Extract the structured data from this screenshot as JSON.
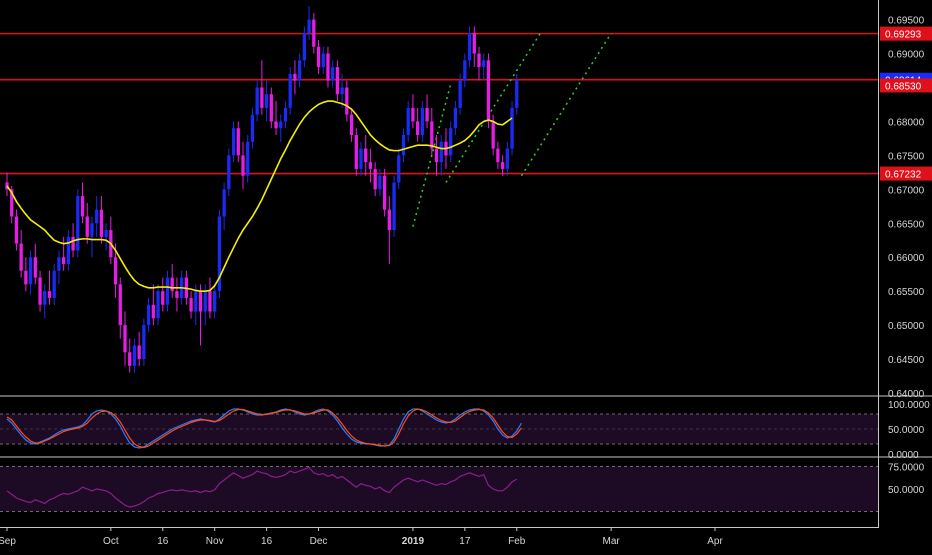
{
  "chart_data": [
    {
      "type": "candlestick",
      "pane": "price",
      "ylim": [
        0.64,
        0.697
      ],
      "y_ticks": [
        "0.69500",
        "0.69000",
        "0.68500",
        "0.68000",
        "0.67500",
        "0.67000",
        "0.66500",
        "0.66000",
        "0.65500",
        "0.65000",
        "0.64500",
        "0.64000"
      ],
      "x_ticks": [
        {
          "label": "Sep",
          "bar": 0
        },
        {
          "label": "Oct",
          "bar": 22
        },
        {
          "label": "16",
          "bar": 33
        },
        {
          "label": "Nov",
          "bar": 44
        },
        {
          "label": "16",
          "bar": 55
        },
        {
          "label": "Dec",
          "bar": 66
        },
        {
          "label": "2019",
          "bar": 86
        },
        {
          "label": "17",
          "bar": 97
        },
        {
          "label": "Feb",
          "bar": 108
        },
        {
          "label": "Mar",
          "bar": 128
        },
        {
          "label": "Apr",
          "bar": 150
        }
      ],
      "ohlc": [
        [
          0.671,
          0.6725,
          0.669,
          0.67
        ],
        [
          0.67,
          0.6705,
          0.665,
          0.666
        ],
        [
          0.666,
          0.667,
          0.661,
          0.662
        ],
        [
          0.662,
          0.664,
          0.657,
          0.658
        ],
        [
          0.658,
          0.66,
          0.655,
          0.656
        ],
        [
          0.656,
          0.661,
          0.6545,
          0.66
        ],
        [
          0.66,
          0.662,
          0.656,
          0.657
        ],
        [
          0.657,
          0.658,
          0.652,
          0.653
        ],
        [
          0.653,
          0.656,
          0.651,
          0.655
        ],
        [
          0.655,
          0.658,
          0.653,
          0.654
        ],
        [
          0.654,
          0.659,
          0.653,
          0.658
        ],
        [
          0.658,
          0.661,
          0.656,
          0.66
        ],
        [
          0.66,
          0.663,
          0.658,
          0.659
        ],
        [
          0.659,
          0.664,
          0.658,
          0.663
        ],
        [
          0.663,
          0.665,
          0.66,
          0.661
        ],
        [
          0.661,
          0.67,
          0.66,
          0.669
        ],
        [
          0.669,
          0.671,
          0.665,
          0.666
        ],
        [
          0.666,
          0.668,
          0.662,
          0.663
        ],
        [
          0.663,
          0.666,
          0.66,
          0.665
        ],
        [
          0.665,
          0.669,
          0.663,
          0.667
        ],
        [
          0.667,
          0.669,
          0.662,
          0.663
        ],
        [
          0.663,
          0.665,
          0.661,
          0.664
        ],
        [
          0.664,
          0.666,
          0.659,
          0.66
        ],
        [
          0.66,
          0.662,
          0.654,
          0.656
        ],
        [
          0.656,
          0.657,
          0.648,
          0.65
        ],
        [
          0.65,
          0.652,
          0.644,
          0.646
        ],
        [
          0.646,
          0.648,
          0.643,
          0.644
        ],
        [
          0.644,
          0.648,
          0.643,
          0.647
        ],
        [
          0.647,
          0.649,
          0.644,
          0.645
        ],
        [
          0.645,
          0.651,
          0.644,
          0.65
        ],
        [
          0.65,
          0.654,
          0.649,
          0.653
        ],
        [
          0.653,
          0.656,
          0.65,
          0.651
        ],
        [
          0.651,
          0.656,
          0.65,
          0.655
        ],
        [
          0.655,
          0.657,
          0.652,
          0.653
        ],
        [
          0.653,
          0.658,
          0.652,
          0.657
        ],
        [
          0.657,
          0.659,
          0.654,
          0.655
        ],
        [
          0.655,
          0.657,
          0.652,
          0.654
        ],
        [
          0.654,
          0.658,
          0.653,
          0.657
        ],
        [
          0.657,
          0.658,
          0.653,
          0.654
        ],
        [
          0.654,
          0.655,
          0.651,
          0.652
        ],
        [
          0.652,
          0.656,
          0.65,
          0.655
        ],
        [
          0.655,
          0.656,
          0.647,
          0.652
        ],
        [
          0.652,
          0.656,
          0.65,
          0.655
        ],
        [
          0.655,
          0.657,
          0.651,
          0.652
        ],
        [
          0.652,
          0.656,
          0.651,
          0.655
        ],
        [
          0.655,
          0.667,
          0.654,
          0.666
        ],
        [
          0.666,
          0.671,
          0.664,
          0.67
        ],
        [
          0.67,
          0.676,
          0.669,
          0.675
        ],
        [
          0.675,
          0.68,
          0.674,
          0.679
        ],
        [
          0.679,
          0.68,
          0.674,
          0.675
        ],
        [
          0.675,
          0.677,
          0.67,
          0.672
        ],
        [
          0.672,
          0.678,
          0.671,
          0.677
        ],
        [
          0.677,
          0.682,
          0.676,
          0.681
        ],
        [
          0.681,
          0.686,
          0.68,
          0.685
        ],
        [
          0.685,
          0.689,
          0.681,
          0.682
        ],
        [
          0.682,
          0.686,
          0.68,
          0.684
        ],
        [
          0.684,
          0.685,
          0.679,
          0.68
        ],
        [
          0.68,
          0.683,
          0.678,
          0.679
        ],
        [
          0.679,
          0.681,
          0.677,
          0.68
        ],
        [
          0.68,
          0.683,
          0.679,
          0.682
        ],
        [
          0.682,
          0.688,
          0.681,
          0.687
        ],
        [
          0.687,
          0.689,
          0.684,
          0.686
        ],
        [
          0.686,
          0.69,
          0.685,
          0.689
        ],
        [
          0.689,
          0.694,
          0.688,
          0.693
        ],
        [
          0.693,
          0.697,
          0.692,
          0.695
        ],
        [
          0.695,
          0.696,
          0.69,
          0.691
        ],
        [
          0.691,
          0.692,
          0.687,
          0.688
        ],
        [
          0.688,
          0.691,
          0.687,
          0.69
        ],
        [
          0.69,
          0.691,
          0.685,
          0.686
        ],
        [
          0.686,
          0.689,
          0.685,
          0.688
        ],
        [
          0.688,
          0.689,
          0.683,
          0.684
        ],
        [
          0.684,
          0.687,
          0.682,
          0.685
        ],
        [
          0.685,
          0.686,
          0.68,
          0.681
        ],
        [
          0.681,
          0.682,
          0.677,
          0.678
        ],
        [
          0.678,
          0.679,
          0.672,
          0.673
        ],
        [
          0.673,
          0.677,
          0.672,
          0.676
        ],
        [
          0.676,
          0.678,
          0.672,
          0.674
        ],
        [
          0.674,
          0.676,
          0.671,
          0.673
        ],
        [
          0.673,
          0.674,
          0.669,
          0.67
        ],
        [
          0.67,
          0.673,
          0.669,
          0.672
        ],
        [
          0.672,
          0.673,
          0.666,
          0.667
        ],
        [
          0.667,
          0.669,
          0.659,
          0.664
        ],
        [
          0.664,
          0.672,
          0.663,
          0.671
        ],
        [
          0.671,
          0.676,
          0.67,
          0.675
        ],
        [
          0.675,
          0.679,
          0.674,
          0.678
        ],
        [
          0.678,
          0.683,
          0.677,
          0.682
        ],
        [
          0.682,
          0.684,
          0.679,
          0.68
        ],
        [
          0.68,
          0.682,
          0.677,
          0.678
        ],
        [
          0.678,
          0.683,
          0.677,
          0.682
        ],
        [
          0.682,
          0.684,
          0.679,
          0.68
        ],
        [
          0.68,
          0.682,
          0.675,
          0.676
        ],
        [
          0.676,
          0.678,
          0.672,
          0.674
        ],
        [
          0.674,
          0.678,
          0.672,
          0.677
        ],
        [
          0.677,
          0.679,
          0.673,
          0.675
        ],
        [
          0.675,
          0.68,
          0.674,
          0.679
        ],
        [
          0.679,
          0.683,
          0.678,
          0.682
        ],
        [
          0.682,
          0.687,
          0.681,
          0.686
        ],
        [
          0.686,
          0.69,
          0.685,
          0.689
        ],
        [
          0.689,
          0.694,
          0.688,
          0.693
        ],
        [
          0.693,
          0.694,
          0.688,
          0.69
        ],
        [
          0.69,
          0.691,
          0.686,
          0.688
        ],
        [
          0.688,
          0.69,
          0.686,
          0.689
        ],
        [
          0.689,
          0.69,
          0.679,
          0.68
        ],
        [
          0.68,
          0.681,
          0.675,
          0.676
        ],
        [
          0.676,
          0.677,
          0.673,
          0.674
        ],
        [
          0.674,
          0.675,
          0.672,
          0.673
        ],
        [
          0.673,
          0.677,
          0.672,
          0.676
        ],
        [
          0.676,
          0.683,
          0.675,
          0.682
        ],
        [
          0.682,
          0.687,
          0.681,
          0.6861
        ]
      ],
      "ma": [
        0.6705,
        0.6695,
        0.6682,
        0.6672,
        0.6663,
        0.6655,
        0.665,
        0.6645,
        0.664,
        0.6632,
        0.6625,
        0.6622,
        0.662,
        0.6621,
        0.6624,
        0.6626,
        0.6627,
        0.6627,
        0.6626,
        0.6626,
        0.6626,
        0.6625,
        0.662,
        0.661,
        0.6598,
        0.6586,
        0.6575,
        0.6566,
        0.656,
        0.6557,
        0.6555,
        0.6555,
        0.6556,
        0.6556,
        0.6556,
        0.6555,
        0.6555,
        0.6555,
        0.6554,
        0.6553,
        0.6551,
        0.655,
        0.655,
        0.6551,
        0.6558,
        0.657,
        0.6585,
        0.66,
        0.6614,
        0.6628,
        0.664,
        0.665,
        0.666,
        0.6672,
        0.6685,
        0.67,
        0.6715,
        0.673,
        0.6745,
        0.6758,
        0.6772,
        0.6784,
        0.6796,
        0.6806,
        0.6814,
        0.682,
        0.6825,
        0.6828,
        0.683,
        0.683,
        0.6828,
        0.6826,
        0.6823,
        0.6818,
        0.681,
        0.68,
        0.679,
        0.678,
        0.6773,
        0.6767,
        0.6762,
        0.6758,
        0.6757,
        0.6757,
        0.6759,
        0.6761,
        0.6763,
        0.6765,
        0.6765,
        0.6765,
        0.6764,
        0.6762,
        0.676,
        0.676,
        0.6762,
        0.6765,
        0.6768,
        0.6772,
        0.6778,
        0.6786,
        0.6795,
        0.68,
        0.6802,
        0.68,
        0.6796,
        0.6795,
        0.68,
        0.6805
      ],
      "h_lines": [
        0.69293,
        0.68614,
        0.67232
      ],
      "price_labels": [
        {
          "value": 0.69293,
          "text": "0.69293",
          "color": "#e0101b"
        },
        {
          "value": 0.68614,
          "text": "0.68614",
          "color": "#1a2bf5"
        },
        {
          "value": 0.6853,
          "text": "0.68530",
          "color": "#e0101b"
        },
        {
          "value": 0.67232,
          "text": "0.67232",
          "color": "#e0101b"
        }
      ],
      "channels": [
        {
          "x": [
            86,
            94
          ],
          "y": [
            0.6645,
            0.6855
          ]
        },
        {
          "x": [
            93,
            113
          ],
          "y": [
            0.671,
            0.693
          ]
        },
        {
          "x": [
            109,
            128
          ],
          "y": [
            0.672,
            0.693
          ]
        }
      ],
      "colors": {
        "up": "#1a2bf5",
        "down": "#e51de5",
        "ma": "#f5f000",
        "level": "#e0101b",
        "channel": "#2bd42b"
      }
    },
    {
      "type": "line",
      "pane": "stochastic",
      "ylim": [
        0,
        100
      ],
      "y_ticks": [
        "100.0000",
        "50.0000",
        "0.0000"
      ],
      "band": [
        80,
        20
      ],
      "series": [
        {
          "color": "#2f7bff",
          "values": [
            70,
            62,
            50,
            38,
            28,
            22,
            20,
            24,
            28,
            32,
            38,
            44,
            48,
            50,
            52,
            54,
            58,
            68,
            80,
            86,
            88,
            86,
            80,
            70,
            56,
            38,
            22,
            14,
            12,
            14,
            20,
            26,
            32,
            38,
            44,
            50,
            54,
            58,
            62,
            66,
            68,
            70,
            68,
            66,
            64,
            70,
            78,
            86,
            90,
            90,
            88,
            84,
            80,
            78,
            78,
            80,
            82,
            84,
            88,
            90,
            88,
            84,
            80,
            78,
            80,
            84,
            88,
            90,
            86,
            78,
            66,
            52,
            40,
            30,
            24,
            22,
            20,
            20,
            18,
            16,
            16,
            18,
            30,
            50,
            70,
            84,
            90,
            90,
            86,
            80,
            74,
            68,
            64,
            62,
            64,
            70,
            78,
            84,
            88,
            90,
            90,
            86,
            78,
            66,
            50,
            38,
            32,
            36,
            46,
            62
          ]
        },
        {
          "color": "#ff4d1a",
          "values": [
            74,
            68,
            56,
            44,
            34,
            26,
            22,
            22,
            26,
            30,
            35,
            40,
            45,
            48,
            50,
            52,
            55,
            62,
            72,
            80,
            85,
            86,
            83,
            76,
            64,
            48,
            32,
            20,
            15,
            13,
            16,
            22,
            28,
            34,
            40,
            46,
            51,
            55,
            59,
            63,
            66,
            68,
            68,
            67,
            65,
            67,
            73,
            80,
            86,
            89,
            89,
            86,
            83,
            80,
            79,
            79,
            81,
            83,
            86,
            88,
            88,
            86,
            83,
            80,
            80,
            82,
            85,
            88,
            88,
            82,
            72,
            60,
            47,
            36,
            28,
            24,
            21,
            20,
            19,
            17,
            16,
            17,
            24,
            40,
            60,
            76,
            86,
            90,
            88,
            84,
            78,
            72,
            67,
            64,
            63,
            66,
            73,
            80,
            85,
            88,
            89,
            88,
            82,
            72,
            58,
            44,
            35,
            33,
            40,
            52
          ]
        }
      ]
    },
    {
      "type": "line",
      "pane": "rsi",
      "ylim": [
        0,
        100
      ],
      "y_ticks": [
        "75.0000",
        "50.0000"
      ],
      "band": [
        75,
        25
      ],
      "series": [
        {
          "color": "#8a1f8a",
          "values": [
            48,
            44,
            40,
            38,
            36,
            35,
            38,
            36,
            34,
            38,
            40,
            43,
            45,
            44,
            46,
            48,
            52,
            50,
            48,
            50,
            49,
            48,
            45,
            40,
            36,
            32,
            30,
            31,
            33,
            36,
            40,
            42,
            45,
            46,
            48,
            49,
            48,
            49,
            48,
            47,
            48,
            46,
            48,
            47,
            49,
            56,
            60,
            64,
            68,
            65,
            62,
            64,
            66,
            70,
            68,
            67,
            64,
            63,
            64,
            66,
            70,
            68,
            70,
            72,
            74,
            68,
            66,
            67,
            64,
            66,
            62,
            64,
            60,
            56,
            52,
            56,
            54,
            53,
            50,
            52,
            48,
            46,
            52,
            56,
            60,
            62,
            60,
            58,
            60,
            58,
            56,
            54,
            56,
            55,
            58,
            60,
            64,
            66,
            68,
            66,
            64,
            66,
            54,
            50,
            48,
            48,
            52,
            58,
            61
          ]
        }
      ]
    }
  ]
}
